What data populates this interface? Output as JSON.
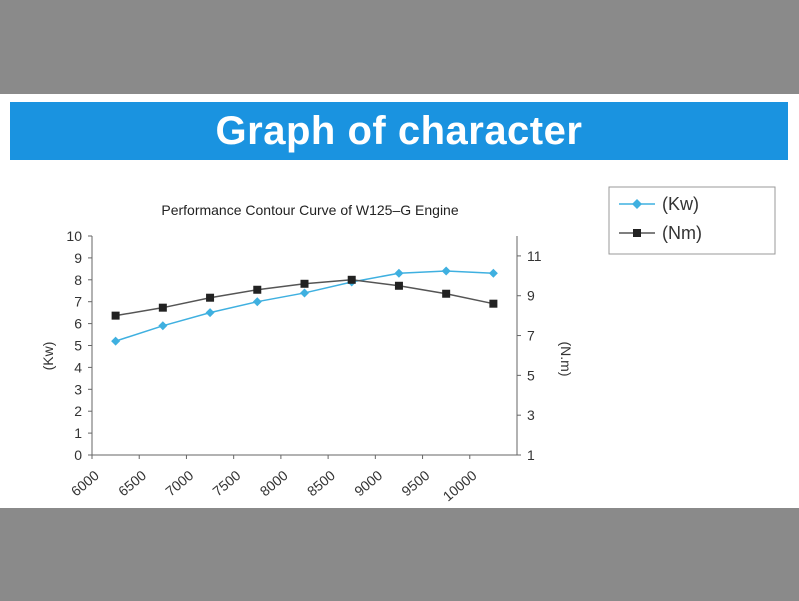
{
  "banner": {
    "title": "Graph of character"
  },
  "chart_data": {
    "type": "line",
    "title": "Performance Contour Curve of W125–G Engine",
    "x": [
      6250,
      6750,
      7250,
      7750,
      8250,
      8750,
      9250,
      9750,
      10250
    ],
    "x_ticks": [
      "6000",
      "6500",
      "7000",
      "7500",
      "8000",
      "8500",
      "9000",
      "9500",
      "10000"
    ],
    "ylabel_left": "(Kw)",
    "ylabel_right": "(N.m)",
    "ylim_left": [
      0,
      10
    ],
    "ylim_right": [
      1,
      12
    ],
    "yticks_left": [
      0,
      1,
      2,
      3,
      4,
      5,
      6,
      7,
      8,
      9,
      10
    ],
    "yticks_right": [
      1,
      3,
      5,
      7,
      9,
      11
    ],
    "grid": false,
    "legend_position": "top-right",
    "series": [
      {
        "name": "(Kw)",
        "axis": "left",
        "color": "#3fb0e0",
        "marker": "diamond",
        "values": [
          5.2,
          5.9,
          6.5,
          7.0,
          7.4,
          7.9,
          8.3,
          8.4,
          8.3
        ]
      },
      {
        "name": "(Nm)",
        "axis": "right",
        "color": "#222222",
        "marker": "square",
        "values": [
          8.0,
          8.4,
          8.9,
          9.3,
          9.6,
          9.8,
          9.5,
          9.1,
          8.6
        ]
      }
    ]
  }
}
